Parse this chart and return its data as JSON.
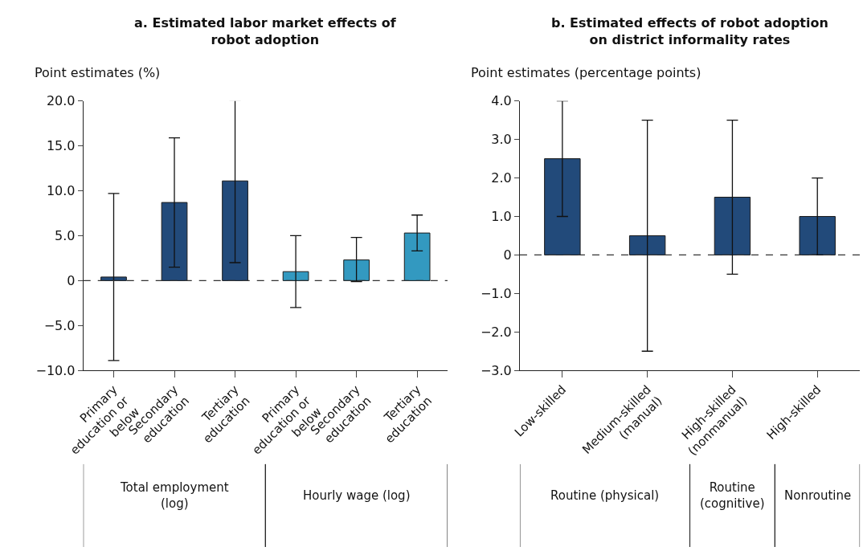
{
  "chart_data": [
    {
      "type": "bar",
      "title": "a. Estimated labor market effects of robot adoption",
      "ylabel": "Point estimates (%)",
      "categories": [
        "Primary education or below",
        "Secondary education",
        "Tertiary education",
        "Primary education or below",
        "Secondary education",
        "Tertiary education"
      ],
      "values": [
        0.4,
        8.7,
        11.1,
        1.0,
        2.3,
        5.3
      ],
      "colors": [
        "#224a7a",
        "#224a7a",
        "#224a7a",
        "#3399c0",
        "#3399c0",
        "#3399c0"
      ],
      "errors": [
        [
          -8.9,
          9.7
        ],
        [
          1.5,
          15.9
        ],
        [
          2.0,
          20.1
        ],
        [
          -3.0,
          5.0
        ],
        [
          -0.1,
          4.8
        ],
        [
          3.3,
          7.3
        ]
      ],
      "ylim": [
        -10,
        20
      ],
      "yticks": [
        {
          "value": -10,
          "label": "−10.0"
        },
        {
          "value": -5,
          "label": "−5.0"
        },
        0,
        {
          "value": 5,
          "label": "5.0"
        },
        {
          "value": 10,
          "label": "10.0"
        },
        {
          "value": 15,
          "label": "15.0"
        },
        {
          "value": 20,
          "label": "20.0"
        }
      ],
      "ref_lines": [
        {
          "axis": "y",
          "value": 0,
          "line_style": "dashed",
          "color": "#333333"
        }
      ],
      "annotations": [
        "Total employment (log)",
        "Hourly wage (log)"
      ]
    },
    {
      "type": "bar",
      "title": "b. Estimated effects of robot adoption on district informality rates",
      "ylabel": "Point estimates (percentage points)",
      "categories": [
        "Low-skilled",
        "Medium-skilled (manual)",
        "High-skilled (nonmanual)",
        "High-skilled"
      ],
      "values": [
        2.5,
        0.5,
        1.5,
        1.0
      ],
      "colors": [
        "#224a7a",
        "#224a7a",
        "#224a7a",
        "#224a7a"
      ],
      "errors": [
        [
          1.0,
          4.0
        ],
        [
          -2.5,
          3.5
        ],
        [
          -0.5,
          3.5
        ],
        [
          0.0,
          2.0
        ]
      ],
      "ylim": [
        -3,
        4
      ],
      "yticks": [
        {
          "value": -3,
          "label": "−3.0"
        },
        {
          "value": -2,
          "label": "−2.0"
        },
        {
          "value": -1,
          "label": "−1.0"
        },
        0,
        {
          "value": 1,
          "label": "1.0"
        },
        {
          "value": 2,
          "label": "2.0"
        },
        {
          "value": 3,
          "label": "3.0"
        },
        {
          "value": 4,
          "label": "4.0"
        }
      ],
      "ref_lines": [
        {
          "axis": "y",
          "value": 0,
          "line_style": "dashed",
          "color": "#333333"
        }
      ],
      "annotations": [
        "Routine (physical)",
        "Routine (cognitive)",
        "Nonroutine"
      ]
    }
  ]
}
